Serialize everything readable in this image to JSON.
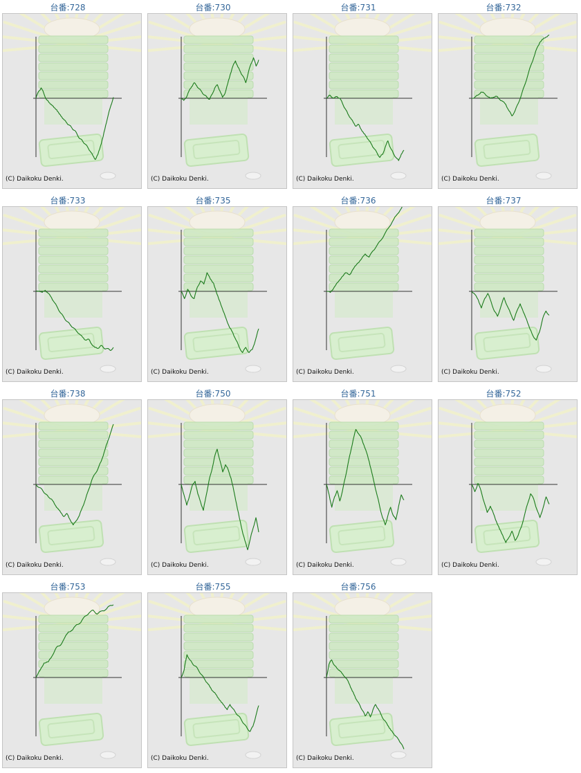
{
  "copyright": "(C) Daikoku Denki.",
  "line_color": "#1a7a1a",
  "chart_data": [
    {
      "type": "line",
      "title": "台番:728",
      "y": [
        0,
        0.33,
        0.5,
        0.25,
        -0.05,
        -0.2,
        -0.3,
        -0.45,
        -0.55,
        -0.75,
        -0.9,
        -1.05,
        -1.2,
        -1.3,
        -1.45,
        -1.55,
        -1.75,
        -1.95,
        -2.05,
        -2.2,
        -2.35,
        -2.55,
        -2.75,
        -2.95,
        -2.7,
        -2.3,
        -1.85,
        -1.3,
        -0.8,
        -0.35,
        0.05
      ]
    },
    {
      "type": "line",
      "title": "台番:730",
      "y": [
        0,
        -0.1,
        0.05,
        0.35,
        0.55,
        0.75,
        0.6,
        0.45,
        0.3,
        0.15,
        0.05,
        -0.05,
        0.2,
        0.5,
        0.65,
        0.35,
        0.05,
        0.25,
        0.7,
        1.15,
        1.55,
        1.8,
        1.5,
        1.25,
        1.05,
        0.75,
        1.25,
        1.65,
        1.95,
        1.55,
        1.85
      ]
    },
    {
      "type": "line",
      "title": "台番:731",
      "y": [
        0,
        0.15,
        0.05,
        0.02,
        0.08,
        0.0,
        -0.25,
        -0.5,
        -0.75,
        -0.95,
        -1.15,
        -1.35,
        -1.25,
        -1.5,
        -1.7,
        -1.85,
        -2.05,
        -2.25,
        -2.45,
        -2.65,
        -2.85,
        -2.7,
        -2.35,
        -2.05,
        -2.4,
        -2.65,
        -2.85,
        -3.0,
        -2.7,
        -2.5
      ]
    },
    {
      "type": "line",
      "title": "台番:732",
      "y": [
        0,
        0.05,
        0.15,
        0.3,
        0.25,
        0.1,
        0.0,
        0.05,
        0.1,
        -0.05,
        -0.15,
        -0.3,
        -0.6,
        -0.85,
        -0.6,
        -0.25,
        0.15,
        0.6,
        1.05,
        1.55,
        1.95,
        2.4,
        2.7,
        2.85,
        2.95,
        3.05
      ]
    },
    {
      "type": "line",
      "title": "台番:733",
      "y": [
        0,
        0.02,
        -0.05,
        0.05,
        -0.1,
        -0.3,
        -0.55,
        -0.8,
        -1.05,
        -1.25,
        -1.45,
        -1.6,
        -1.75,
        -1.9,
        -2.05,
        -2.2,
        -2.35,
        -2.3,
        -2.55,
        -2.7,
        -2.75,
        -2.6,
        -2.75,
        -2.75,
        -2.85,
        -2.7
      ]
    },
    {
      "type": "line",
      "title": "台番:735",
      "y": [
        0,
        -0.35,
        0.1,
        -0.2,
        -0.35,
        0.2,
        0.5,
        0.35,
        0.9,
        0.6,
        0.4,
        -0.1,
        -0.5,
        -0.95,
        -1.35,
        -1.75,
        -2.0,
        -2.35,
        -2.7,
        -2.95,
        -2.7,
        -2.95,
        -2.8,
        -2.35,
        -1.8
      ]
    },
    {
      "type": "line",
      "title": "台番:736",
      "y": [
        0,
        -0.05,
        0.2,
        0.45,
        0.7,
        0.9,
        0.8,
        1.1,
        1.35,
        1.55,
        1.8,
        1.65,
        1.95,
        2.2,
        2.45,
        2.75,
        3.05,
        3.35,
        3.65,
        3.9,
        4.2
      ]
    },
    {
      "type": "line",
      "title": "台番:737",
      "y": [
        0,
        -0.15,
        -0.4,
        -0.8,
        -0.35,
        -0.1,
        -0.5,
        -0.95,
        -1.2,
        -0.75,
        -0.3,
        -0.7,
        -1.05,
        -1.4,
        -0.95,
        -0.6,
        -1.0,
        -1.35,
        -1.8,
        -2.15,
        -2.35,
        -1.95,
        -1.3,
        -0.95,
        -1.15
      ]
    },
    {
      "type": "line",
      "title": "台番:738",
      "y": [
        0,
        -0.15,
        -0.25,
        -0.45,
        -0.6,
        -0.7,
        -0.95,
        -1.15,
        -1.35,
        -1.55,
        -1.4,
        -1.7,
        -1.95,
        -1.75,
        -1.5,
        -1.1,
        -0.7,
        -0.25,
        0.2,
        0.5,
        0.75,
        1.1,
        1.55,
        2.0,
        2.45,
        2.9
      ]
    },
    {
      "type": "line",
      "title": "台番:750",
      "y": [
        0,
        -0.5,
        -1.0,
        -0.55,
        -0.05,
        0.15,
        -0.45,
        -0.85,
        -1.25,
        -0.55,
        0.15,
        0.65,
        1.3,
        1.7,
        1.15,
        0.6,
        0.95,
        0.7,
        0.3,
        -0.3,
        -0.95,
        -1.6,
        -2.2,
        -2.7,
        -3.15,
        -2.6,
        -2.1,
        -1.6,
        -2.3
      ]
    },
    {
      "type": "line",
      "title": "台番:751",
      "y": [
        0,
        -0.5,
        -1.1,
        -0.6,
        -0.3,
        -0.8,
        -0.3,
        0.3,
        0.95,
        1.55,
        2.15,
        2.65,
        2.45,
        2.25,
        1.9,
        1.55,
        1.1,
        0.55,
        0.0,
        -0.55,
        -1.1,
        -1.6,
        -1.95,
        -1.5,
        -1.1,
        -1.5,
        -1.7,
        -1.05,
        -0.5,
        -0.75
      ]
    },
    {
      "type": "line",
      "title": "台番:752",
      "y": [
        0,
        -0.35,
        0.05,
        -0.3,
        -0.85,
        -1.35,
        -1.05,
        -1.4,
        -1.8,
        -2.15,
        -2.45,
        -2.8,
        -2.55,
        -2.25,
        -2.7,
        -2.45,
        -2.05,
        -1.5,
        -0.95,
        -0.45,
        -0.7,
        -1.2,
        -1.6,
        -1.15,
        -0.6,
        -0.95
      ]
    },
    {
      "type": "line",
      "title": "台番:753",
      "y": [
        0,
        0.35,
        0.7,
        0.75,
        1.05,
        1.45,
        1.55,
        1.9,
        2.2,
        2.3,
        2.55,
        2.65,
        2.95,
        3.1,
        3.25,
        3.05,
        3.2,
        3.25,
        3.45,
        3.5
      ]
    },
    {
      "type": "line",
      "title": "台番:755",
      "y": [
        0,
        0.35,
        1.1,
        0.85,
        0.65,
        0.55,
        0.35,
        0.15,
        -0.05,
        -0.25,
        -0.45,
        -0.65,
        -0.8,
        -1.0,
        -1.2,
        -1.35,
        -1.55,
        -1.3,
        -1.5,
        -1.7,
        -1.85,
        -2.05,
        -2.25,
        -2.45,
        -2.6,
        -2.35,
        -1.85,
        -1.35
      ]
    },
    {
      "type": "line",
      "title": "台番:756",
      "y": [
        0,
        0.65,
        0.85,
        0.6,
        0.45,
        0.35,
        0.2,
        0.05,
        -0.1,
        -0.35,
        -0.65,
        -0.9,
        -1.15,
        -1.35,
        -1.6,
        -1.85,
        -1.65,
        -1.9,
        -1.55,
        -1.3,
        -1.5,
        -1.75,
        -2.0,
        -2.15,
        -2.35,
        -2.55,
        -2.7,
        -2.85,
        -3.0,
        -3.2,
        -3.45
      ]
    }
  ]
}
